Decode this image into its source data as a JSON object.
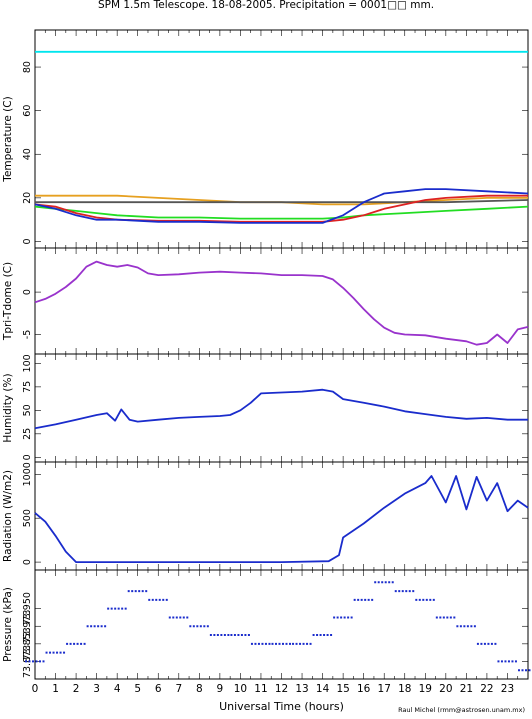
{
  "title": "SPM 1.5m Telescope. 18-08-2005. Precipitation = 0001□□ mm.",
  "credit": "Raul Michel (rmm@astrosen.unam.mx)",
  "chart_data": [
    {
      "type": "line",
      "ylabel": "Temperature (C)",
      "ylim": [
        -3,
        97
      ],
      "yticks": [
        0,
        20,
        40,
        60,
        80
      ],
      "xlim": [
        0,
        24
      ],
      "series": [
        {
          "color": "#00e5ee",
          "x": [
            0,
            24
          ],
          "y": [
            87,
            87
          ]
        },
        {
          "color": "#e6a020",
          "x": [
            0,
            2,
            4,
            6,
            8,
            10,
            12,
            14,
            16,
            18,
            20,
            22,
            24
          ],
          "y": [
            21,
            21,
            21,
            20,
            19,
            18,
            18,
            17,
            17,
            18,
            19,
            20,
            20
          ]
        },
        {
          "color": "#555555",
          "x": [
            0,
            4,
            8,
            12,
            16,
            20,
            24
          ],
          "y": [
            18,
            18,
            18,
            18,
            18,
            18,
            19
          ]
        },
        {
          "color": "#22dd22",
          "x": [
            0,
            1,
            2,
            3,
            4,
            6,
            8,
            10,
            12,
            14,
            15,
            16,
            18,
            20,
            22,
            24
          ],
          "y": [
            16,
            15,
            14,
            13,
            12,
            11,
            11,
            10.5,
            10.5,
            10.5,
            11,
            12,
            13,
            14,
            15,
            16
          ]
        },
        {
          "color": "#dd2222",
          "x": [
            0,
            1,
            2,
            3,
            4,
            6,
            8,
            10,
            12,
            14,
            15,
            16,
            17,
            18,
            19,
            20,
            22,
            24
          ],
          "y": [
            17,
            16,
            13,
            11,
            10,
            9.5,
            9.5,
            9,
            9,
            9,
            10,
            12,
            15,
            17,
            19,
            20,
            21,
            21
          ]
        },
        {
          "color": "#1a2ccc",
          "x": [
            0,
            1,
            2,
            3,
            4,
            6,
            8,
            10,
            12,
            14,
            15,
            16,
            17,
            18,
            19,
            20,
            22,
            24
          ],
          "y": [
            17,
            15,
            12,
            10,
            10,
            9,
            9,
            8.5,
            8.5,
            8.5,
            12,
            18,
            22,
            23,
            24,
            24,
            23,
            22
          ]
        }
      ]
    },
    {
      "type": "line",
      "ylabel": "Tpri-Tdome (C)",
      "ylim": [
        -7.3,
        5.2
      ],
      "yticks": [
        -5,
        0
      ],
      "xlim": [
        0,
        24
      ],
      "series": [
        {
          "color": "#9933cc",
          "x": [
            0,
            0.5,
            1,
            1.5,
            2,
            2.5,
            3,
            3.5,
            4,
            4.5,
            5,
            5.5,
            6,
            7,
            8,
            9,
            10,
            11,
            12,
            13,
            14,
            14.5,
            15,
            15.5,
            16,
            16.5,
            17,
            17.5,
            18,
            19,
            20,
            21,
            21.5,
            22,
            22.5,
            23,
            23.5,
            24
          ],
          "y": [
            -1.2,
            -0.8,
            -0.2,
            0.6,
            1.6,
            3.0,
            3.6,
            3.2,
            3.0,
            3.2,
            2.9,
            2.2,
            2.0,
            2.1,
            2.3,
            2.4,
            2.3,
            2.2,
            2.0,
            2.0,
            1.9,
            1.5,
            0.5,
            -0.7,
            -2.0,
            -3.2,
            -4.2,
            -4.8,
            -5.0,
            -5.1,
            -5.5,
            -5.8,
            -6.2,
            -6.0,
            -5.0,
            -6.0,
            -4.4,
            -4.1
          ]
        }
      ]
    },
    {
      "type": "line",
      "ylabel": "Humidity (%)",
      "ylim": [
        -5,
        110
      ],
      "yticks": [
        0,
        25,
        50,
        75,
        100
      ],
      "xlim": [
        0,
        24
      ],
      "series": [
        {
          "color": "#1a2ccc",
          "x": [
            0,
            1,
            2,
            3,
            3.5,
            3.9,
            4.2,
            4.6,
            5,
            6,
            7,
            8,
            9,
            9.5,
            10,
            10.5,
            11,
            12,
            13,
            14,
            14.5,
            15,
            16,
            17,
            18,
            19,
            20,
            21,
            22,
            23,
            24
          ],
          "y": [
            31,
            35,
            40,
            45,
            47,
            39,
            51,
            40,
            38,
            40,
            42,
            43,
            44,
            45,
            50,
            58,
            68,
            69,
            70,
            72,
            70,
            62,
            58,
            54,
            49,
            46,
            43,
            41,
            42,
            40,
            40
          ]
        }
      ]
    },
    {
      "type": "line",
      "ylabel": "Radiation (W/m2)",
      "ylim": [
        -90,
        1140
      ],
      "yticks": [
        0,
        500,
        1000
      ],
      "xlim": [
        0,
        24
      ],
      "series": [
        {
          "color": "#1a2ccc",
          "x": [
            0,
            0.5,
            1,
            1.5,
            2,
            3,
            6,
            9,
            12,
            14.3,
            14.8,
            15,
            16,
            17,
            18,
            19,
            19.3,
            20,
            20.5,
            21,
            21.5,
            22,
            22.5,
            23,
            23.5,
            24
          ],
          "y": [
            560,
            460,
            300,
            120,
            0,
            0,
            0,
            0,
            0,
            10,
            80,
            280,
            440,
            620,
            780,
            900,
            980,
            680,
            980,
            600,
            970,
            700,
            900,
            580,
            700,
            620
          ]
        }
      ]
    },
    {
      "type": "scatter",
      "ylabel": "Pressure (kPa)",
      "yticklabels": [
        "73.873",
        "73.853",
        "73.973",
        "73.950"
      ],
      "ylim": [
        0,
        6.2
      ],
      "xlim": [
        0,
        24
      ],
      "xticks": [
        0,
        1,
        2,
        3,
        4,
        5,
        6,
        7,
        8,
        9,
        10,
        11,
        12,
        13,
        14,
        15,
        16,
        17,
        18,
        19,
        20,
        21,
        22,
        23
      ],
      "xlabel": "Universal Time (hours)",
      "series": [
        {
          "color": "#1a2ccc",
          "x": [
            0,
            1,
            2,
            3,
            4,
            5,
            6,
            7,
            8,
            9,
            10,
            11,
            12,
            13,
            14,
            15,
            16,
            17,
            18,
            19,
            20,
            21,
            22,
            23,
            24
          ],
          "y": [
            1,
            1.5,
            2,
            3,
            4,
            5,
            4.5,
            3.5,
            3,
            2.5,
            2.5,
            2,
            2,
            2,
            2.5,
            3.5,
            4.5,
            5.5,
            5,
            4.5,
            3.5,
            3,
            2,
            1,
            0.5
          ]
        }
      ]
    }
  ]
}
